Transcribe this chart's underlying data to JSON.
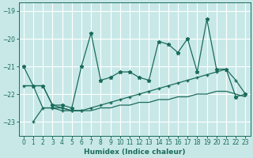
{
  "xlabel": "Humidex (Indice chaleur)",
  "background_color": "#c8e8e8",
  "grid_color": "#b0d0d0",
  "line_color": "#1a6b5a",
  "xlim": [
    -0.5,
    23.5
  ],
  "ylim": [
    -23.5,
    -18.7
  ],
  "yticks": [
    -23,
    -22,
    -21,
    -20,
    -19
  ],
  "xticks": [
    0,
    1,
    2,
    3,
    4,
    5,
    6,
    7,
    8,
    9,
    10,
    11,
    12,
    13,
    14,
    15,
    16,
    17,
    18,
    19,
    20,
    21,
    22,
    23
  ],
  "s1_x": [
    0,
    1,
    2,
    3,
    4,
    5,
    6,
    7,
    8,
    9,
    10,
    11,
    12,
    13,
    14,
    15,
    16,
    17,
    18,
    19,
    20,
    21,
    22,
    23
  ],
  "s1_y": [
    -21.0,
    -21.7,
    -21.7,
    -22.4,
    -22.4,
    -22.5,
    -21.0,
    -19.8,
    -21.5,
    -21.4,
    -21.2,
    -21.2,
    -21.4,
    -21.5,
    -20.1,
    -20.2,
    -20.5,
    -20.0,
    -21.2,
    -19.3,
    -21.1,
    -21.1,
    -22.1,
    -22.0
  ],
  "s2_x": [
    0,
    1,
    2,
    3,
    4,
    5,
    6,
    7,
    8,
    9,
    10,
    11,
    12,
    13,
    14,
    15,
    16,
    17,
    18,
    19,
    20,
    21,
    22,
    23
  ],
  "s2_y": [
    -21.7,
    -21.7,
    -21.7,
    -22.4,
    -22.5,
    -22.6,
    -22.6,
    -22.5,
    -22.4,
    -22.3,
    -22.2,
    -22.1,
    -22.0,
    -21.9,
    -21.8,
    -21.7,
    -21.6,
    -21.5,
    -21.4,
    -21.3,
    -21.2,
    -21.1,
    -21.5,
    -22.0
  ],
  "s3_x": [
    0,
    1,
    2,
    3,
    4,
    5,
    6,
    7,
    8,
    9,
    10,
    11,
    12,
    13,
    14,
    15,
    16,
    17,
    18,
    19,
    20,
    21,
    22,
    23
  ],
  "s3_y": [
    -21.7,
    -21.7,
    -22.5,
    -22.5,
    -22.5,
    -22.6,
    -22.6,
    -22.6,
    -22.5,
    -22.5,
    -22.4,
    -22.4,
    -22.3,
    -22.3,
    -22.2,
    -22.2,
    -22.1,
    -22.1,
    -22.0,
    -22.0,
    -21.9,
    -21.9,
    -22.0,
    -22.1
  ],
  "s4_x": [
    1,
    2,
    3,
    4,
    5,
    6
  ],
  "s4_y": [
    -23.0,
    -22.5,
    -22.5,
    -22.6,
    -22.6,
    -22.6
  ]
}
